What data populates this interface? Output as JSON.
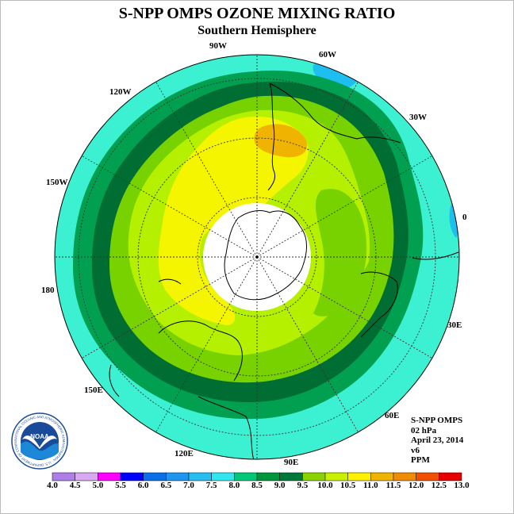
{
  "title": "S-NPP OMPS OZONE MIXING RATIO",
  "subtitle": "Southern Hemisphere",
  "longitude_labels": {
    "w90": "90W",
    "w60": "60W",
    "w30": "30W",
    "lon0": "0",
    "e30": "30E",
    "e60": "60E",
    "e90": "90E",
    "e120": "120E",
    "e150": "150E",
    "lon180": "180",
    "w150": "150W",
    "w120": "120W"
  },
  "info": {
    "instrument": "S-NPP OMPS",
    "pressure": "02 hPa",
    "date": "April 23, 2014",
    "version": "v6",
    "units": "PPM"
  },
  "logo": {
    "text": "NOAA",
    "ring_text": "NATIONAL OCEANIC AND ATMOSPHERIC ADMINISTRATION · U.S. DEPARTMENT OF COMMERCE"
  },
  "colorbar": {
    "ticks": [
      "4.0",
      "4.5",
      "5.0",
      "5.5",
      "6.0",
      "6.5",
      "7.0",
      "7.5",
      "8.0",
      "8.5",
      "9.0",
      "9.5",
      "10.0",
      "10.5",
      "11.0",
      "11.5",
      "12.0",
      "12.5",
      "13.0"
    ],
    "colors": [
      "#b07ee8",
      "#d8a8f0",
      "#ff00ff",
      "#0000ff",
      "#0a6ee8",
      "#1e96f0",
      "#28bef0",
      "#32e6f0",
      "#00c878",
      "#00963c",
      "#00783c",
      "#8cd200",
      "#c8f000",
      "#fff000",
      "#f0b400",
      "#f08c00",
      "#f05000",
      "#e60000",
      "#8c5a3c"
    ]
  },
  "map_colors": {
    "outer": "#3cf0d2",
    "ring_8_8_5": "#00a050",
    "ring_8_5_9": "#006e32",
    "band_9_9_5": "#78d200",
    "band_9_5_10": "#b4f000",
    "core_10_10_5": "#f5f500",
    "spot_10_5_11": "#f0b400",
    "spot_6_5_7": "#1ebef0",
    "no_data": "#ffffff"
  }
}
